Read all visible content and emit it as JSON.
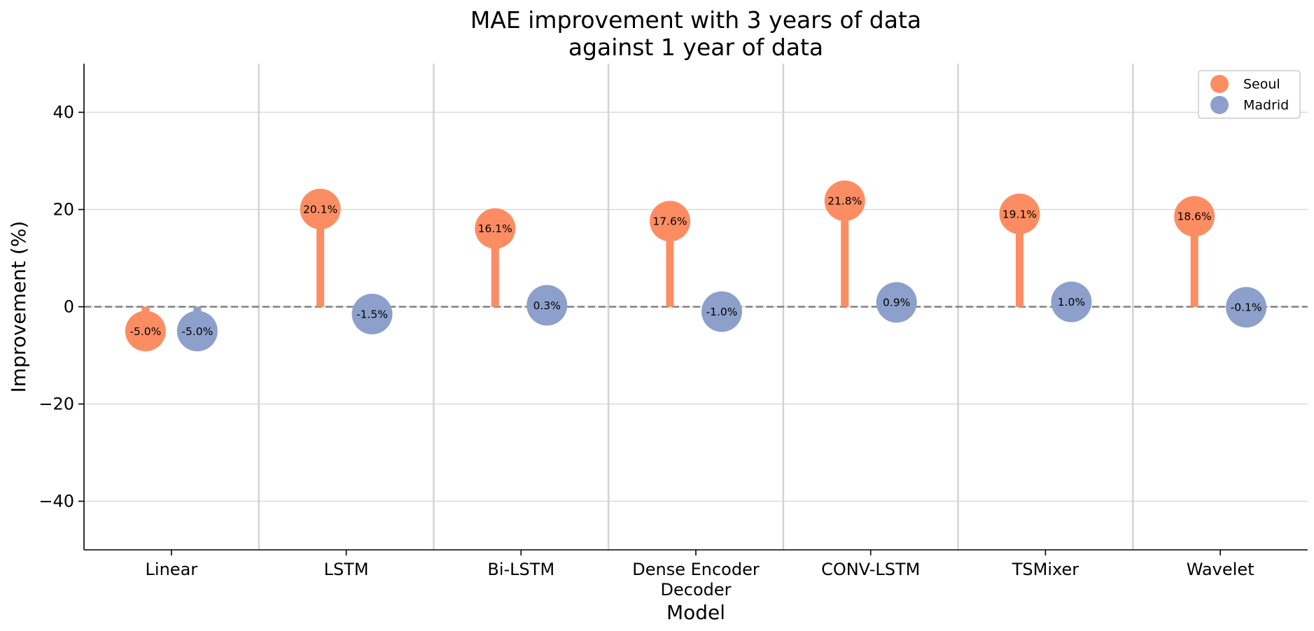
{
  "chart_data": {
    "type": "lollipop",
    "title_lines": [
      "MAE improvement with 3 years of data",
      "against 1 year of data"
    ],
    "xlabel": "Model",
    "ylabel": "Improvement (%)",
    "categories": [
      [
        "Linear"
      ],
      [
        "LSTM"
      ],
      [
        "Bi-LSTM"
      ],
      [
        "Dense Encoder",
        "Decoder"
      ],
      [
        "CONV-LSTM"
      ],
      [
        "TSMixer"
      ],
      [
        "Wavelet"
      ]
    ],
    "series": [
      {
        "name": "Seoul",
        "color": "#fc8d62",
        "values": [
          -5.0,
          20.1,
          16.1,
          17.6,
          21.8,
          19.1,
          18.6
        ],
        "labels": [
          "-5.0%",
          "20.1%",
          "16.1%",
          "17.6%",
          "21.8%",
          "19.1%",
          "18.6%"
        ]
      },
      {
        "name": "Madrid",
        "color": "#8da0cb",
        "values": [
          -5.0,
          -1.5,
          0.3,
          -1.0,
          0.9,
          1.0,
          -0.1
        ],
        "labels": [
          "-5.0%",
          "-1.5%",
          "0.3%",
          "-1.0%",
          "0.9%",
          "1.0%",
          "-0.1%"
        ]
      }
    ],
    "ylim": [
      -50,
      50
    ],
    "yticks": [
      -40,
      -20,
      0,
      20,
      40
    ],
    "ytick_labels": [
      "−40",
      "−20",
      "0",
      "20",
      "40"
    ],
    "grid": "y",
    "category_separators": true,
    "reference_line": {
      "y": 0,
      "style": "dashed",
      "color": "#808080"
    },
    "legend": {
      "position": "top-right"
    }
  }
}
